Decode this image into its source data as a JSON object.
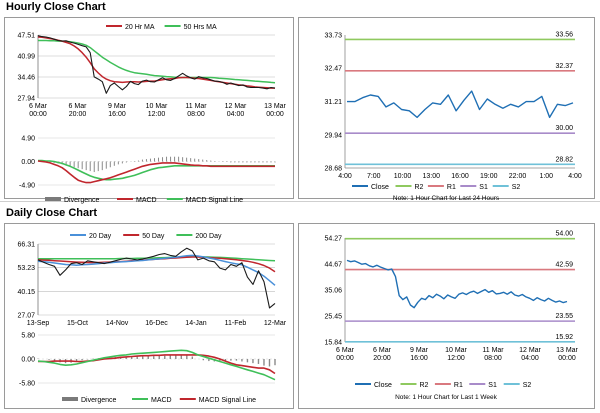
{
  "sections": [
    {
      "title": "Hourly Close Chart"
    },
    {
      "title": "Daily Close Chart"
    }
  ],
  "chart_data": [
    {
      "id": "hourly-price",
      "type": "line",
      "legend": [
        {
          "name": "20 Hr MA",
          "color": "#c0262d",
          "marker": "line"
        },
        {
          "name": "50 Hrs MA",
          "color": "#3fbf59",
          "marker": "line"
        }
      ],
      "ylim": [
        27.94,
        47.51
      ],
      "yticks": [
        "47.51",
        "40.99",
        "34.46",
        "27.94"
      ],
      "xlabels": [
        [
          "6 Mar",
          "00:00"
        ],
        [
          "6 Mar",
          "20:00"
        ],
        [
          "9 Mar",
          "16:00"
        ],
        [
          "10 Mar",
          "12:00"
        ],
        [
          "11 Mar",
          "08:00"
        ],
        [
          "12 Mar",
          "04:00"
        ],
        [
          "13 Mar",
          "00:00"
        ]
      ],
      "series": [
        {
          "color": "#1a1a1a",
          "values": [
            47.3,
            47.0,
            46.9,
            46.6,
            46.2,
            45.8,
            45.6,
            45.7,
            45.3,
            45.0,
            44.6,
            44.2,
            43.8,
            42.0,
            34.5,
            33.8,
            33.0,
            29.4,
            31.8,
            32.6,
            31.5,
            30.5,
            31.5,
            33.1,
            32.4,
            32.1,
            33.2,
            33.5,
            33.0,
            32.9,
            33.6,
            34.2,
            33.6,
            33.4,
            34.0,
            34.8,
            35.6,
            34.8,
            34.2,
            33.8,
            34.6,
            34.2,
            34.0,
            33.6,
            33.2,
            33.1,
            32.8,
            32.2,
            32.6,
            32.2,
            31.8,
            32.0,
            31.4,
            31.2,
            31.2,
            31.2,
            31.0,
            30.8,
            31.2,
            31.0
          ]
        },
        {
          "color": "#c0262d",
          "values": [
            46.9,
            46.8,
            46.6,
            46.4,
            46.2,
            45.9,
            45.6,
            45.2,
            44.8,
            44.1,
            43.2,
            42.0,
            40.6,
            38.9,
            37.0,
            35.7,
            34.6,
            33.8,
            33.3,
            33.0,
            32.9,
            32.8,
            32.9,
            33.0,
            33.0,
            32.9,
            33.0,
            33.1,
            33.2,
            33.2,
            33.4,
            33.6,
            33.8,
            33.9,
            34.0,
            34.2,
            34.3,
            34.3,
            34.2,
            34.1,
            34.0,
            33.8,
            33.6,
            33.4,
            33.2,
            33.0,
            32.8,
            32.6,
            32.4,
            32.2,
            32.0,
            31.9,
            31.7,
            31.6,
            31.4,
            31.3,
            31.2,
            31.1,
            31.0,
            31.0
          ]
        },
        {
          "color": "#3fbf59",
          "values": [
            45.8,
            45.8,
            45.8,
            45.7,
            45.7,
            45.6,
            45.6,
            45.5,
            45.4,
            45.2,
            45.0,
            44.7,
            44.3,
            43.6,
            42.6,
            41.6,
            40.6,
            39.8,
            39.0,
            38.3,
            37.6,
            37.0,
            36.5,
            36.1,
            35.8,
            35.6,
            35.5,
            35.3,
            35.1,
            34.9,
            34.8,
            34.7,
            34.6,
            34.5,
            34.4,
            34.3,
            34.3,
            34.3,
            34.3,
            34.3,
            34.3,
            34.3,
            34.3,
            34.3,
            34.2,
            34.1,
            34.0,
            33.9,
            33.8,
            33.7,
            33.6,
            33.5,
            33.4,
            33.3,
            33.2,
            33.1,
            33.0,
            32.9,
            32.8,
            32.7
          ]
        }
      ]
    },
    {
      "id": "hourly-macd",
      "type": "line",
      "ylim": [
        -4.9,
        4.9
      ],
      "yticks": [
        "4.90",
        "0.00",
        "-4.90"
      ],
      "legend": [
        {
          "name": "Divergence",
          "color": "#7a7a7a",
          "marker": "bar"
        },
        {
          "name": "MACD",
          "color": "#c0262d",
          "marker": "line"
        },
        {
          "name": "MACD Signal Line",
          "color": "#3fbf59",
          "marker": "line"
        }
      ],
      "divergence": [
        0.0,
        -0.1,
        -0.1,
        -0.2,
        -0.3,
        -0.4,
        -0.6,
        -0.8,
        -1.0,
        -1.2,
        -1.4,
        -1.6,
        -1.8,
        -2.0,
        -2.2,
        -2.0,
        -1.8,
        -1.5,
        -1.2,
        -0.9,
        -0.6,
        -0.4,
        -0.2,
        0.0,
        0.1,
        0.2,
        0.4,
        0.5,
        0.6,
        0.7,
        0.8,
        0.9,
        1.0,
        1.0,
        1.0,
        1.0,
        0.9,
        0.8,
        0.7,
        0.6,
        0.5,
        0.4,
        0.3,
        0.2,
        0.1,
        0.0,
        -0.1,
        -0.1,
        -0.2,
        -0.2,
        -0.2,
        -0.2,
        -0.2,
        -0.2,
        -0.2,
        -0.2,
        -0.2,
        -0.2,
        -0.2,
        -0.2
      ],
      "macd": [
        0.1,
        0.0,
        -0.1,
        -0.3,
        -0.6,
        -0.9,
        -1.3,
        -1.9,
        -2.6,
        -3.3,
        -3.9,
        -4.2,
        -4.4,
        -4.4,
        -4.2,
        -4.0,
        -3.8,
        -3.6,
        -3.4,
        -3.1,
        -2.8,
        -2.5,
        -2.2,
        -1.9,
        -1.6,
        -1.3,
        -1.0,
        -0.8,
        -0.6,
        -0.5,
        -0.4,
        -0.3,
        -0.3,
        -0.3,
        -0.3,
        -0.4,
        -0.5,
        -0.6,
        -0.7,
        -0.8,
        -0.8,
        -0.9,
        -0.9,
        -1.0,
        -1.0,
        -1.0,
        -1.0,
        -1.0,
        -1.0,
        -1.0,
        -1.0,
        -1.0,
        -1.0,
        -1.0,
        -1.0,
        -1.0,
        -1.0,
        -1.0,
        -1.0,
        -1.0
      ],
      "signal": [
        0.2,
        0.2,
        0.1,
        0.1,
        0.0,
        -0.2,
        -0.4,
        -0.7,
        -1.0,
        -1.4,
        -1.8,
        -2.2,
        -2.6,
        -3.0,
        -3.3,
        -3.5,
        -3.7,
        -3.8,
        -3.8,
        -3.7,
        -3.6,
        -3.5,
        -3.3,
        -3.1,
        -2.9,
        -2.6,
        -2.3,
        -2.0,
        -1.7,
        -1.5,
        -1.3,
        -1.2,
        -1.1,
        -1.0,
        -0.9,
        -0.9,
        -0.9,
        -0.9,
        -0.9,
        -0.9,
        -0.9,
        -0.9,
        -0.9,
        -0.9,
        -0.9,
        -0.9,
        -0.9,
        -0.9,
        -0.9,
        -0.9,
        -0.9,
        -0.9,
        -0.9,
        -0.9,
        -0.9,
        -0.9,
        -0.9,
        -0.9,
        -0.9,
        -0.9
      ]
    },
    {
      "id": "hourly-24h",
      "type": "line",
      "ylim": [
        28.68,
        33.73
      ],
      "yticks": [
        "33.73",
        "32.47",
        "31.21",
        "29.94",
        "28.68"
      ],
      "xticks": [
        "4:00",
        "7:00",
        "10:00",
        "13:00",
        "16:00",
        "19:00",
        "22:00",
        "1:00",
        "4:00"
      ],
      "close": [
        31.2,
        31.2,
        31.35,
        31.45,
        31.4,
        31.0,
        31.15,
        30.9,
        30.85,
        30.6,
        30.9,
        31.15,
        31.1,
        31.45,
        30.85,
        31.25,
        31.6,
        30.9,
        31.3,
        31.1,
        30.95,
        31.1,
        31.0,
        31.2,
        31.2,
        31.4,
        30.6,
        31.1,
        31.05,
        31.15
      ],
      "levels": [
        {
          "name": "R2",
          "value": 33.56,
          "label": "33.56",
          "color": "#8fc95f"
        },
        {
          "name": "R1",
          "value": 32.37,
          "label": "32.37",
          "color": "#d9797f"
        },
        {
          "name": "S1",
          "value": 30.0,
          "label": "30.00",
          "color": "#a88bc9"
        },
        {
          "name": "S2",
          "value": 28.82,
          "label": "28.82",
          "color": "#6fc1d8"
        }
      ],
      "legend": [
        {
          "name": "Close",
          "color": "#1f6fb4"
        },
        {
          "name": "R2",
          "color": "#8fc95f"
        },
        {
          "name": "R1",
          "color": "#d9797f"
        },
        {
          "name": "S1",
          "color": "#a88bc9"
        },
        {
          "name": "S2",
          "color": "#6fc1d8"
        }
      ],
      "note": "Note: 1 Hour Chart for Last 24 Hours"
    },
    {
      "id": "daily-price",
      "type": "line",
      "ylim": [
        27.07,
        66.31
      ],
      "yticks": [
        "66.31",
        "53.23",
        "40.15",
        "27.07"
      ],
      "xticks": [
        "13-Sep",
        "15-Oct",
        "14-Nov",
        "16-Dec",
        "14-Jan",
        "11-Feb",
        "12-Mar"
      ],
      "legend": [
        {
          "name": "20 Day",
          "color": "#4a90d9"
        },
        {
          "name": "50 Day",
          "color": "#c0262d"
        },
        {
          "name": "200 Day",
          "color": "#3fbf59"
        }
      ],
      "close": [
        57.5,
        56.2,
        55.0,
        54.0,
        49.0,
        52.0,
        55.5,
        56.0,
        55.0,
        57.0,
        56.5,
        56.0,
        55.5,
        56.2,
        57.0,
        57.8,
        58.5,
        58.0,
        57.5,
        58.0,
        58.8,
        59.5,
        60.5,
        61.0,
        60.0,
        59.5,
        62.0,
        64.0,
        62.5,
        57.5,
        58.5,
        57.0,
        56.5,
        53.0,
        52.0,
        55.0,
        54.0,
        56.0,
        48.0,
        44.0,
        51.5,
        45.5,
        31.0,
        33.5
      ],
      "ma20": [
        56.8,
        56.5,
        56.2,
        55.8,
        55.4,
        55.0,
        54.8,
        54.6,
        54.8,
        55.0,
        55.2,
        55.5,
        55.8,
        56.0,
        56.2,
        56.4,
        56.6,
        56.8,
        57.0,
        57.2,
        57.5,
        57.8,
        58.1,
        58.4,
        58.7,
        59.0,
        59.4,
        59.8,
        60.0,
        59.7,
        59.2,
        58.6,
        58.0,
        57.3,
        56.6,
        55.9,
        55.3,
        54.8,
        53.5,
        52.0,
        50.5,
        48.5,
        46.0,
        43.5
      ],
      "ma50": [
        57.5,
        57.4,
        57.3,
        57.1,
        56.9,
        56.7,
        56.5,
        56.3,
        56.2,
        56.1,
        56.1,
        56.1,
        56.2,
        56.3,
        56.4,
        56.6,
        56.8,
        57.0,
        57.2,
        57.4,
        57.6,
        57.8,
        58.0,
        58.2,
        58.4,
        58.6,
        58.8,
        59.0,
        59.1,
        59.1,
        59.0,
        58.8,
        58.6,
        58.4,
        58.2,
        57.9,
        57.6,
        57.2,
        56.8,
        56.2,
        55.4,
        54.4,
        53.0,
        51.0
      ],
      "ma200": [
        58.2,
        58.2,
        58.2,
        58.2,
        58.2,
        58.2,
        58.2,
        58.2,
        58.2,
        58.2,
        58.2,
        58.2,
        58.2,
        58.2,
        58.2,
        58.3,
        58.3,
        58.3,
        58.4,
        58.4,
        58.5,
        58.6,
        58.7,
        58.8,
        58.9,
        59.0,
        59.1,
        59.2,
        59.3,
        59.3,
        59.2,
        59.1,
        59.0,
        58.9,
        58.8,
        58.6,
        58.4,
        58.2,
        58.0,
        57.8,
        57.6,
        57.4,
        57.2,
        57.0
      ]
    },
    {
      "id": "daily-macd",
      "type": "line",
      "ylim": [
        -5.8,
        5.8
      ],
      "yticks": [
        "5.80",
        "0.00",
        "-5.80"
      ],
      "legend": [
        {
          "name": "Divergence",
          "color": "#7a7a7a",
          "marker": "bar"
        },
        {
          "name": "MACD",
          "color": "#1f6fb4",
          "marker": "line"
        },
        {
          "name": "MACD Signal Line",
          "color": "#c0262d",
          "marker": "line"
        }
      ],
      "divergence": [
        0.1,
        0.0,
        -0.2,
        -0.5,
        -0.8,
        -1.0,
        -0.9,
        -0.6,
        -0.3,
        -0.1,
        0.1,
        0.2,
        0.3,
        0.4,
        0.5,
        0.5,
        0.5,
        0.6,
        0.6,
        0.6,
        0.7,
        0.7,
        0.8,
        0.8,
        0.9,
        1.0,
        1.1,
        1.0,
        0.6,
        0.0,
        -0.3,
        -0.5,
        -0.6,
        -0.6,
        -0.5,
        -0.4,
        -0.4,
        -0.6,
        -0.8,
        -1.0,
        -1.2,
        -1.6,
        -1.8,
        -1.5
      ],
      "macd": [
        -0.5,
        -0.6,
        -0.8,
        -1.0,
        -1.3,
        -1.5,
        -1.4,
        -1.2,
        -0.9,
        -0.6,
        -0.3,
        0.0,
        0.3,
        0.5,
        0.7,
        0.9,
        1.0,
        1.2,
        1.3,
        1.4,
        1.5,
        1.6,
        1.7,
        1.8,
        1.9,
        2.0,
        2.1,
        2.0,
        1.6,
        1.0,
        0.6,
        0.2,
        -0.2,
        -0.6,
        -1.0,
        -1.4,
        -1.8,
        -2.2,
        -2.6,
        -3.0,
        -3.4,
        -3.8,
        -4.4,
        -5.0
      ],
      "signal": [
        -0.6,
        -0.6,
        -0.6,
        -0.5,
        -0.5,
        -0.5,
        -0.5,
        -0.6,
        -0.6,
        -0.5,
        -0.4,
        -0.2,
        0.0,
        0.1,
        0.2,
        0.4,
        0.5,
        0.6,
        0.7,
        0.8,
        0.8,
        0.9,
        0.9,
        1.0,
        1.0,
        1.0,
        1.0,
        1.0,
        1.0,
        1.0,
        0.9,
        0.7,
        0.4,
        0.0,
        -0.5,
        -1.0,
        -1.4,
        -1.6,
        -1.8,
        -2.0,
        -2.2,
        -2.2,
        -2.6,
        -3.5
      ]
    },
    {
      "id": "daily-1w",
      "type": "line",
      "ylim": [
        15.84,
        54.27
      ],
      "yticks": [
        "54.27",
        "44.67",
        "35.06",
        "25.45",
        "15.84"
      ],
      "xlabels": [
        [
          "6 Mar",
          "00:00"
        ],
        [
          "6 Mar",
          "20:00"
        ],
        [
          "9 Mar",
          "16:00"
        ],
        [
          "10 Mar",
          "12:00"
        ],
        [
          "11 Mar",
          "08:00"
        ],
        [
          "12 Mar",
          "04:00"
        ],
        [
          "13 Mar",
          "00:00"
        ]
      ],
      "close": [
        46.0,
        45.5,
        45.8,
        45.2,
        44.6,
        44.8,
        44.0,
        43.6,
        44.2,
        43.5,
        43.0,
        42.5,
        42.8,
        40.0,
        33.0,
        31.5,
        32.5,
        29.5,
        28.5,
        30.5,
        32.0,
        31.5,
        33.0,
        32.2,
        33.5,
        32.8,
        31.8,
        33.2,
        32.5,
        32.0,
        33.5,
        34.0,
        33.4,
        34.2,
        34.6,
        33.8,
        34.5,
        35.2,
        34.2,
        34.8,
        33.6,
        33.8,
        34.2,
        33.5,
        34.4,
        33.2,
        32.8,
        33.4,
        32.5,
        32.0,
        31.2,
        32.2,
        31.5,
        31.0,
        32.0,
        31.2,
        30.6,
        31.0,
        30.4,
        30.8
      ],
      "levels": [
        {
          "name": "R2",
          "value": 54.0,
          "label": "54.00",
          "color": "#8fc95f"
        },
        {
          "name": "R1",
          "value": 42.59,
          "label": "42.59",
          "color": "#d9797f"
        },
        {
          "name": "S1",
          "value": 23.55,
          "label": "23.55",
          "color": "#a88bc9"
        },
        {
          "name": "S2",
          "value": 15.92,
          "label": "15.92",
          "color": "#6fc1d8"
        }
      ],
      "legend": [
        {
          "name": "Close",
          "color": "#1f6fb4"
        },
        {
          "name": "R2",
          "color": "#8fc95f"
        },
        {
          "name": "R1",
          "color": "#d9797f"
        },
        {
          "name": "S1",
          "color": "#a88bc9"
        },
        {
          "name": "S2",
          "color": "#6fc1d8"
        }
      ],
      "note": "Note: 1 Hour Chart for Last 1 Week"
    }
  ]
}
